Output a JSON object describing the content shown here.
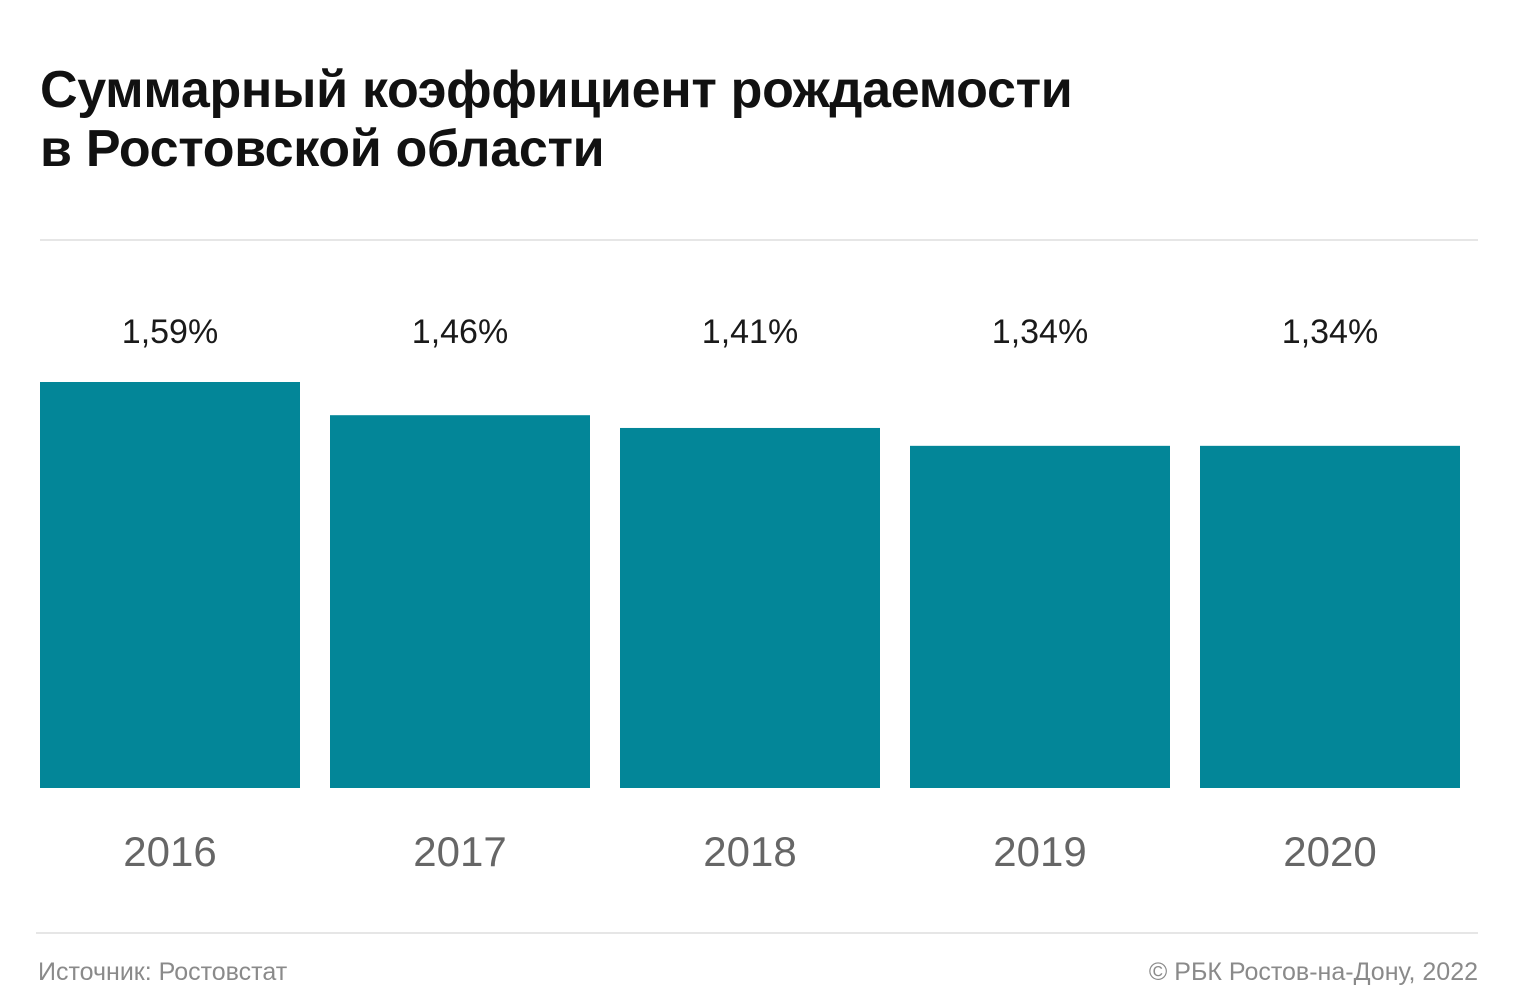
{
  "chart_data": {
    "type": "bar",
    "title": "Суммарный коэффициент рождаемости\nв Ростовской области",
    "categories": [
      "2016",
      "2017",
      "2018",
      "2019",
      "2020"
    ],
    "values": [
      1.59,
      1.46,
      1.41,
      1.34,
      1.34
    ],
    "data_labels": [
      "1,59%",
      "1,46%",
      "1,41%",
      "1,34%",
      "1,34%"
    ],
    "ylim": [
      0,
      1.59
    ],
    "grid": false,
    "colors": {
      "bar": "#038698"
    }
  },
  "footer": {
    "source": "Источник: Ростовстат",
    "copyright": "© РБК Ростов-на-Дону, 2022"
  }
}
